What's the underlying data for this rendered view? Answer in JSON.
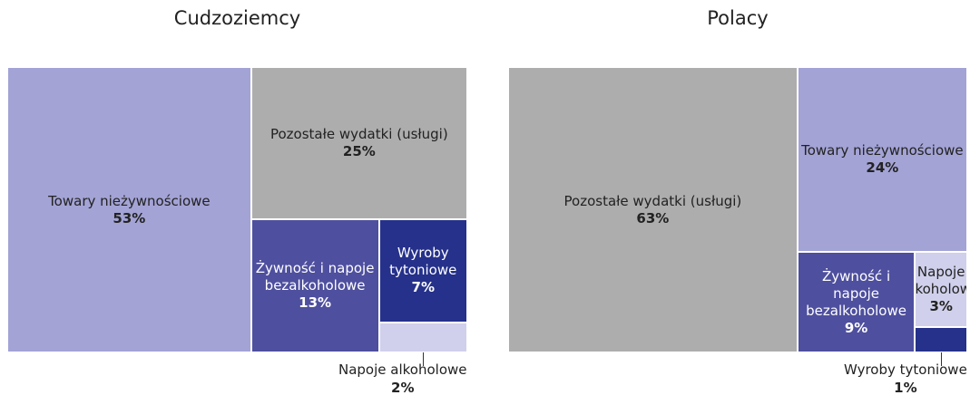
{
  "chart_data": [
    {
      "type": "treemap",
      "title": "Cudzoziemcy",
      "categories": [
        "Towary nieżywnościowe",
        "Pozostałe wydatki (usługi)",
        "Żywność i napoje bezalkoholowe",
        "Wyroby tytoniowe",
        "Napoje alkoholowe"
      ],
      "values": [
        53,
        25,
        13,
        7,
        2
      ],
      "value_labels": [
        "53%",
        "25%",
        "13%",
        "7%",
        "2%"
      ],
      "colors": [
        "#a3a3d6",
        "#adadad",
        "#4e4f9e",
        "#25318a",
        "#d0d0ec"
      ]
    },
    {
      "type": "treemap",
      "title": "Polacy",
      "categories": [
        "Pozostałe wydatki (usługi)",
        "Towary nieżywnościowe",
        "Żywność i napoje bezalkoholowe",
        "Napoje alkoholowe",
        "Wyroby tytoniowe"
      ],
      "values": [
        63,
        24,
        9,
        3,
        1
      ],
      "value_labels": [
        "63%",
        "24%",
        "9%",
        "3%",
        "1%"
      ],
      "colors": [
        "#adadad",
        "#a3a3d6",
        "#4e4f9e",
        "#d0d0ec",
        "#25318a"
      ]
    }
  ]
}
